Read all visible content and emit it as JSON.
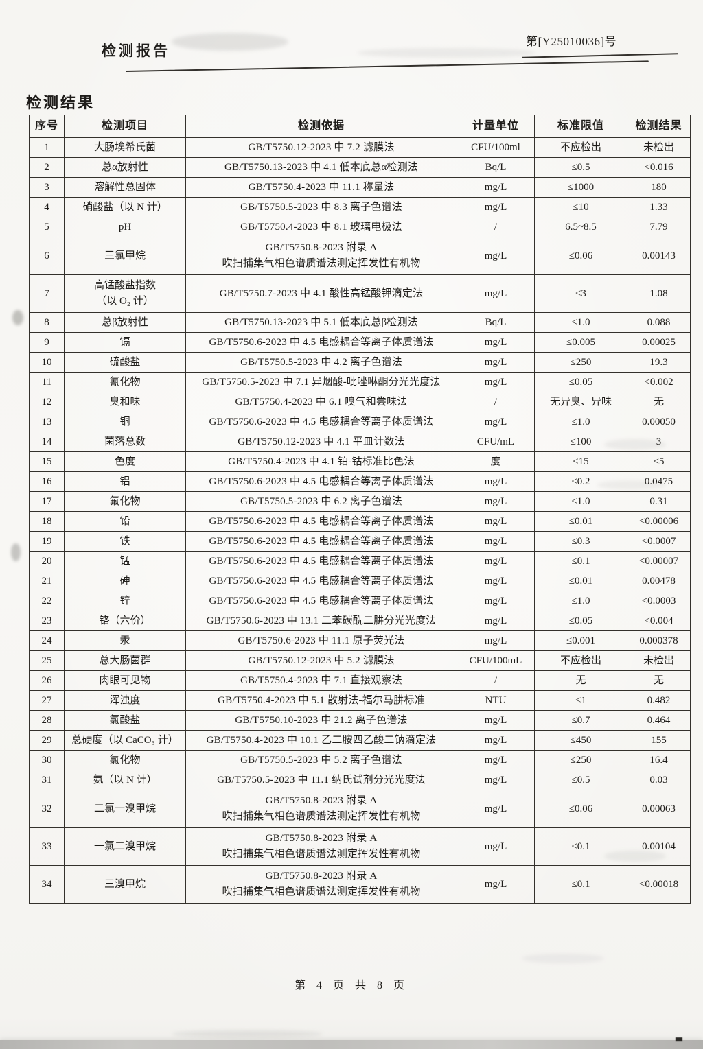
{
  "header": {
    "doc_title": "检测报告",
    "report_no": "第[Y25010036]号"
  },
  "section_title": "检测结果",
  "table": {
    "columns": [
      "序号",
      "检测项目",
      "检测依据",
      "计量单位",
      "标准限值",
      "检测结果"
    ],
    "rows": [
      {
        "no": "1",
        "item": "大肠埃希氏菌",
        "basis": "GB/T5750.12-2023 中 7.2  滤膜法",
        "unit": "CFU/100ml",
        "limit": "不应检出",
        "result": "未检出"
      },
      {
        "no": "2",
        "item": "总α放射性",
        "basis": "GB/T5750.13-2023 中 4.1  低本底总α检测法",
        "unit": "Bq/L",
        "limit": "≤0.5",
        "result": "<0.016"
      },
      {
        "no": "3",
        "item": "溶解性总固体",
        "basis": "GB/T5750.4-2023 中 11.1  称量法",
        "unit": "mg/L",
        "limit": "≤1000",
        "result": "180"
      },
      {
        "no": "4",
        "item": "硝酸盐（以 N 计）",
        "basis": "GB/T5750.5-2023 中 8.3  离子色谱法",
        "unit": "mg/L",
        "limit": "≤10",
        "result": "1.33"
      },
      {
        "no": "5",
        "item": "pH",
        "basis": "GB/T5750.4-2023 中 8.1  玻璃电极法",
        "unit": "/",
        "limit": "6.5~8.5",
        "result": "7.79"
      },
      {
        "no": "6",
        "item": "三氯甲烷",
        "basis": "GB/T5750.8-2023 附录 A\n吹扫捕集气相色谱质谱法测定挥发性有机物",
        "unit": "mg/L",
        "limit": "≤0.06",
        "result": "0.00143"
      },
      {
        "no": "7",
        "item": "高锰酸盐指数\n（以 O₂ 计）",
        "basis": "GB/T5750.7-2023 中 4.1  酸性高锰酸钾滴定法",
        "unit": "mg/L",
        "limit": "≤3",
        "result": "1.08"
      },
      {
        "no": "8",
        "item": "总β放射性",
        "basis": "GB/T5750.13-2023 中 5.1  低本底总β检测法",
        "unit": "Bq/L",
        "limit": "≤1.0",
        "result": "0.088"
      },
      {
        "no": "9",
        "item": "镉",
        "basis": "GB/T5750.6-2023 中 4.5  电感耦合等离子体质谱法",
        "unit": "mg/L",
        "limit": "≤0.005",
        "result": "0.00025"
      },
      {
        "no": "10",
        "item": "硫酸盐",
        "basis": "GB/T5750.5-2023 中 4.2  离子色谱法",
        "unit": "mg/L",
        "limit": "≤250",
        "result": "19.3"
      },
      {
        "no": "11",
        "item": "氰化物",
        "basis": "GB/T5750.5-2023 中 7.1  异烟酸-吡唑啉酮分光光度法",
        "unit": "mg/L",
        "limit": "≤0.05",
        "result": "<0.002"
      },
      {
        "no": "12",
        "item": "臭和味",
        "basis": "GB/T5750.4-2023 中 6.1  嗅气和尝味法",
        "unit": "/",
        "limit": "无异臭、异味",
        "result": "无"
      },
      {
        "no": "13",
        "item": "铜",
        "basis": "GB/T5750.6-2023 中 4.5  电感耦合等离子体质谱法",
        "unit": "mg/L",
        "limit": "≤1.0",
        "result": "0.00050"
      },
      {
        "no": "14",
        "item": "菌落总数",
        "basis": "GB/T5750.12-2023 中 4.1  平皿计数法",
        "unit": "CFU/mL",
        "limit": "≤100",
        "result": "3"
      },
      {
        "no": "15",
        "item": "色度",
        "basis": "GB/T5750.4-2023 中 4.1  铂-钴标准比色法",
        "unit": "度",
        "limit": "≤15",
        "result": "<5"
      },
      {
        "no": "16",
        "item": "铝",
        "basis": "GB/T5750.6-2023 中 4.5  电感耦合等离子体质谱法",
        "unit": "mg/L",
        "limit": "≤0.2",
        "result": "0.0475"
      },
      {
        "no": "17",
        "item": "氟化物",
        "basis": "GB/T5750.5-2023 中 6.2  离子色谱法",
        "unit": "mg/L",
        "limit": "≤1.0",
        "result": "0.31"
      },
      {
        "no": "18",
        "item": "铅",
        "basis": "GB/T5750.6-2023 中 4.5  电感耦合等离子体质谱法",
        "unit": "mg/L",
        "limit": "≤0.01",
        "result": "<0.00006"
      },
      {
        "no": "19",
        "item": "铁",
        "basis": "GB/T5750.6-2023 中 4.5  电感耦合等离子体质谱法",
        "unit": "mg/L",
        "limit": "≤0.3",
        "result": "<0.0007"
      },
      {
        "no": "20",
        "item": "锰",
        "basis": "GB/T5750.6-2023 中 4.5  电感耦合等离子体质谱法",
        "unit": "mg/L",
        "limit": "≤0.1",
        "result": "<0.00007"
      },
      {
        "no": "21",
        "item": "砷",
        "basis": "GB/T5750.6-2023 中 4.5  电感耦合等离子体质谱法",
        "unit": "mg/L",
        "limit": "≤0.01",
        "result": "0.00478"
      },
      {
        "no": "22",
        "item": "锌",
        "basis": "GB/T5750.6-2023 中 4.5  电感耦合等离子体质谱法",
        "unit": "mg/L",
        "limit": "≤1.0",
        "result": "<0.0003"
      },
      {
        "no": "23",
        "item": "铬（六价）",
        "basis": "GB/T5750.6-2023 中 13.1  二苯碳酰二肼分光光度法",
        "unit": "mg/L",
        "limit": "≤0.05",
        "result": "<0.004"
      },
      {
        "no": "24",
        "item": "汞",
        "basis": "GB/T5750.6-2023 中 11.1  原子荧光法",
        "unit": "mg/L",
        "limit": "≤0.001",
        "result": "0.000378"
      },
      {
        "no": "25",
        "item": "总大肠菌群",
        "basis": "GB/T5750.12-2023 中 5.2  滤膜法",
        "unit": "CFU/100mL",
        "limit": "不应检出",
        "result": "未检出"
      },
      {
        "no": "26",
        "item": "肉眼可见物",
        "basis": "GB/T5750.4-2023 中 7.1  直接观察法",
        "unit": "/",
        "limit": "无",
        "result": "无"
      },
      {
        "no": "27",
        "item": "浑浊度",
        "basis": "GB/T5750.4-2023 中 5.1  散射法-福尔马肼标准",
        "unit": "NTU",
        "limit": "≤1",
        "result": "0.482"
      },
      {
        "no": "28",
        "item": "氯酸盐",
        "basis": "GB/T5750.10-2023 中 21.2  离子色谱法",
        "unit": "mg/L",
        "limit": "≤0.7",
        "result": "0.464"
      },
      {
        "no": "29",
        "item": "总硬度（以 CaCO₃ 计）",
        "basis": "GB/T5750.4-2023 中 10.1  乙二胺四乙酸二钠滴定法",
        "unit": "mg/L",
        "limit": "≤450",
        "result": "155"
      },
      {
        "no": "30",
        "item": "氯化物",
        "basis": "GB/T5750.5-2023 中 5.2  离子色谱法",
        "unit": "mg/L",
        "limit": "≤250",
        "result": "16.4"
      },
      {
        "no": "31",
        "item": "氨（以 N 计）",
        "basis": "GB/T5750.5-2023 中 11.1  纳氏试剂分光光度法",
        "unit": "mg/L",
        "limit": "≤0.5",
        "result": "0.03"
      },
      {
        "no": "32",
        "item": "二氯一溴甲烷",
        "basis": "GB/T5750.8-2023 附录 A\n吹扫捕集气相色谱质谱法测定挥发性有机物",
        "unit": "mg/L",
        "limit": "≤0.06",
        "result": "0.00063"
      },
      {
        "no": "33",
        "item": "一氯二溴甲烷",
        "basis": "GB/T5750.8-2023 附录 A\n吹扫捕集气相色谱质谱法测定挥发性有机物",
        "unit": "mg/L",
        "limit": "≤0.1",
        "result": "0.00104"
      },
      {
        "no": "34",
        "item": "三溴甲烷",
        "basis": "GB/T5750.8-2023 附录 A\n吹扫捕集气相色谱质谱法测定挥发性有机物",
        "unit": "mg/L",
        "limit": "≤0.1",
        "result": "<0.00018"
      }
    ]
  },
  "footer": {
    "page_text": "第 4 页 共 8 页"
  }
}
